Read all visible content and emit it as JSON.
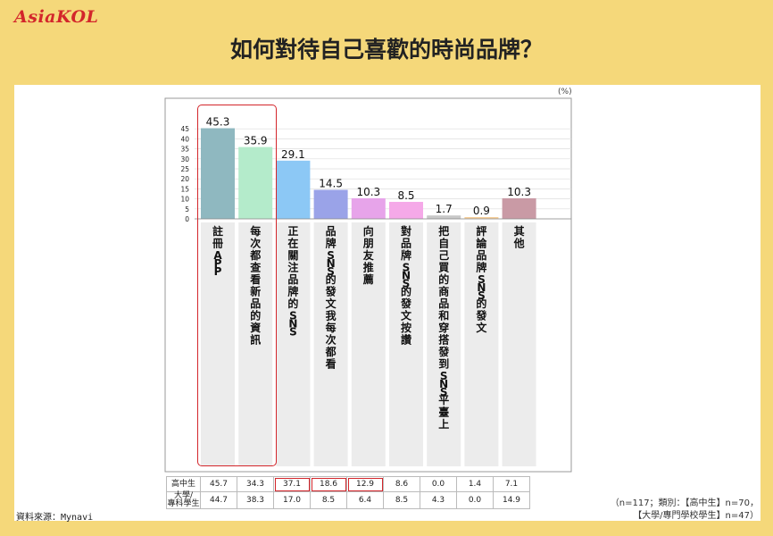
{
  "logo": "AsiaKOL",
  "title": "如何對待自己喜歡的時尚品牌？",
  "unit": "(%)",
  "source": "資料來源：Mynavi",
  "note_line1": "（n=117；類別：【高中生】n=70，",
  "note_line2": "【大學/專門學校學生】n=47）",
  "chart_data": {
    "type": "bar",
    "ylim": [
      0,
      50
    ],
    "yticks": [
      0,
      5,
      10,
      15,
      20,
      25,
      30,
      35,
      40,
      45
    ],
    "categories": [
      "註冊APP",
      "每次都查看新品的資訊",
      "正在關注品牌的SNS",
      "品牌SNS的發文我每次都看",
      "向朋友推薦",
      "對品牌SNS的發文按讚",
      "把自己買的商品和穿搭發到SNS平臺上",
      "評論品牌SNS的發文",
      "其他"
    ],
    "values": [
      45.3,
      35.9,
      29.1,
      14.5,
      10.3,
      8.5,
      1.7,
      0.9,
      10.3
    ],
    "value_labels": [
      "45.3",
      "35.9",
      "29.1",
      "14.5",
      "10.3",
      "8.5",
      "1.7",
      "0.9",
      "10.3"
    ],
    "colors": [
      "#8fb8c0",
      "#b4ebcb",
      "#8cc8f5",
      "#9aa3e8",
      "#e7a4ea",
      "#f5a9e8",
      "#c8c8c8",
      "#f6cf9a",
      "#c99aa5"
    ],
    "highlight_indices": [
      0,
      1
    ]
  },
  "table": {
    "row1_label": "高中生",
    "row2_label_a": "大學/",
    "row2_label_b": "專科學生",
    "row1": [
      "45.7",
      "34.3",
      "37.1",
      "18.6",
      "12.9",
      "8.6",
      "0.0",
      "1.4",
      "7.1"
    ],
    "row2": [
      "44.7",
      "38.3",
      "17.0",
      "8.5",
      "6.4",
      "8.5",
      "4.3",
      "0.0",
      "14.9"
    ],
    "highlight_cols": [
      2,
      3,
      4
    ]
  }
}
